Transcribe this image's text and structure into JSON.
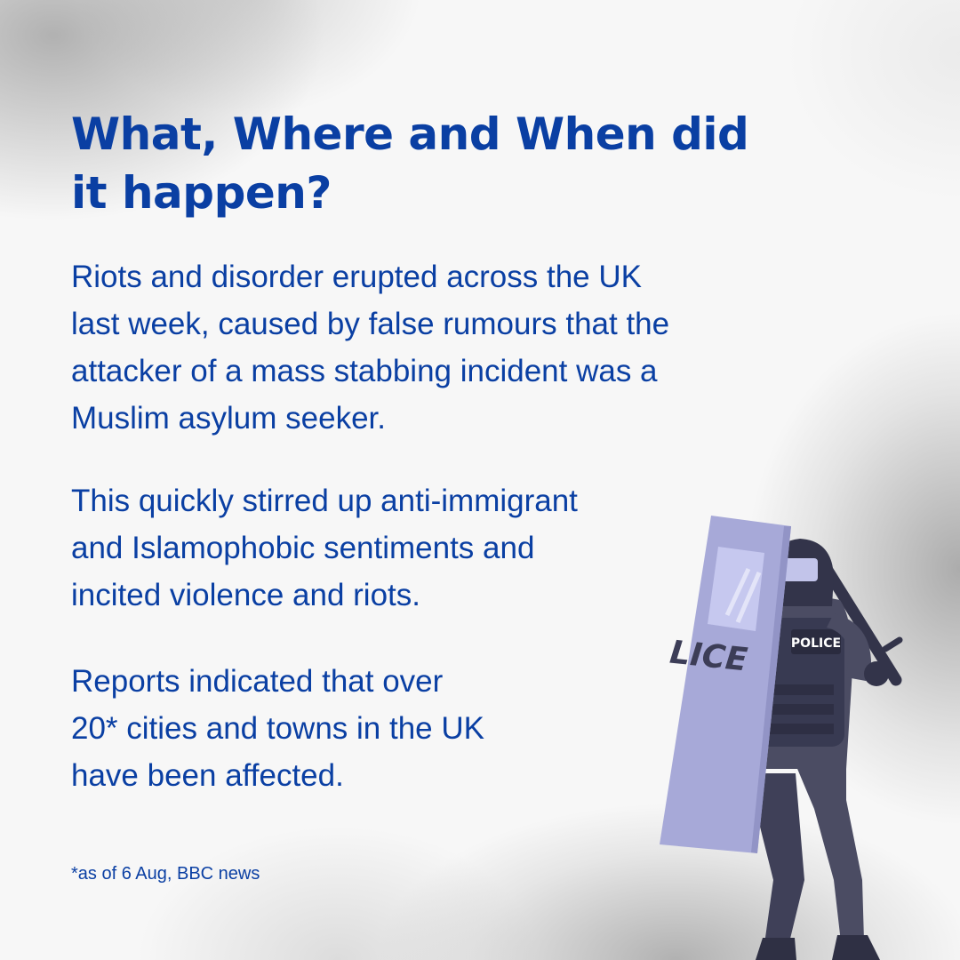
{
  "heading": {
    "line1": "What, Where and When did",
    "line2": "it happen?"
  },
  "paragraphs": {
    "p1": {
      "l1": "Riots and disorder erupted across the UK",
      "l2": "last week, caused by false rumours that the",
      "l3": "attacker of a mass stabbing incident was a",
      "l4": "Muslim asylum seeker."
    },
    "p2": {
      "l1": "This quickly stirred up anti-immigrant",
      "l2": "and Islamophobic sentiments and",
      "l3": "incited violence and riots."
    },
    "p3": {
      "l1": "Reports indicated that over",
      "l2": "20* cities and towns in the UK",
      "l3": "have been affected."
    }
  },
  "footnote": "*as of 6 Aug, BBC news",
  "illustration": {
    "shield_text": "LICE",
    "vest_text": "POLICE"
  },
  "colors": {
    "text": "#0a3fa3",
    "shield": "#a7a9d8",
    "suit": "#4b4c63"
  }
}
